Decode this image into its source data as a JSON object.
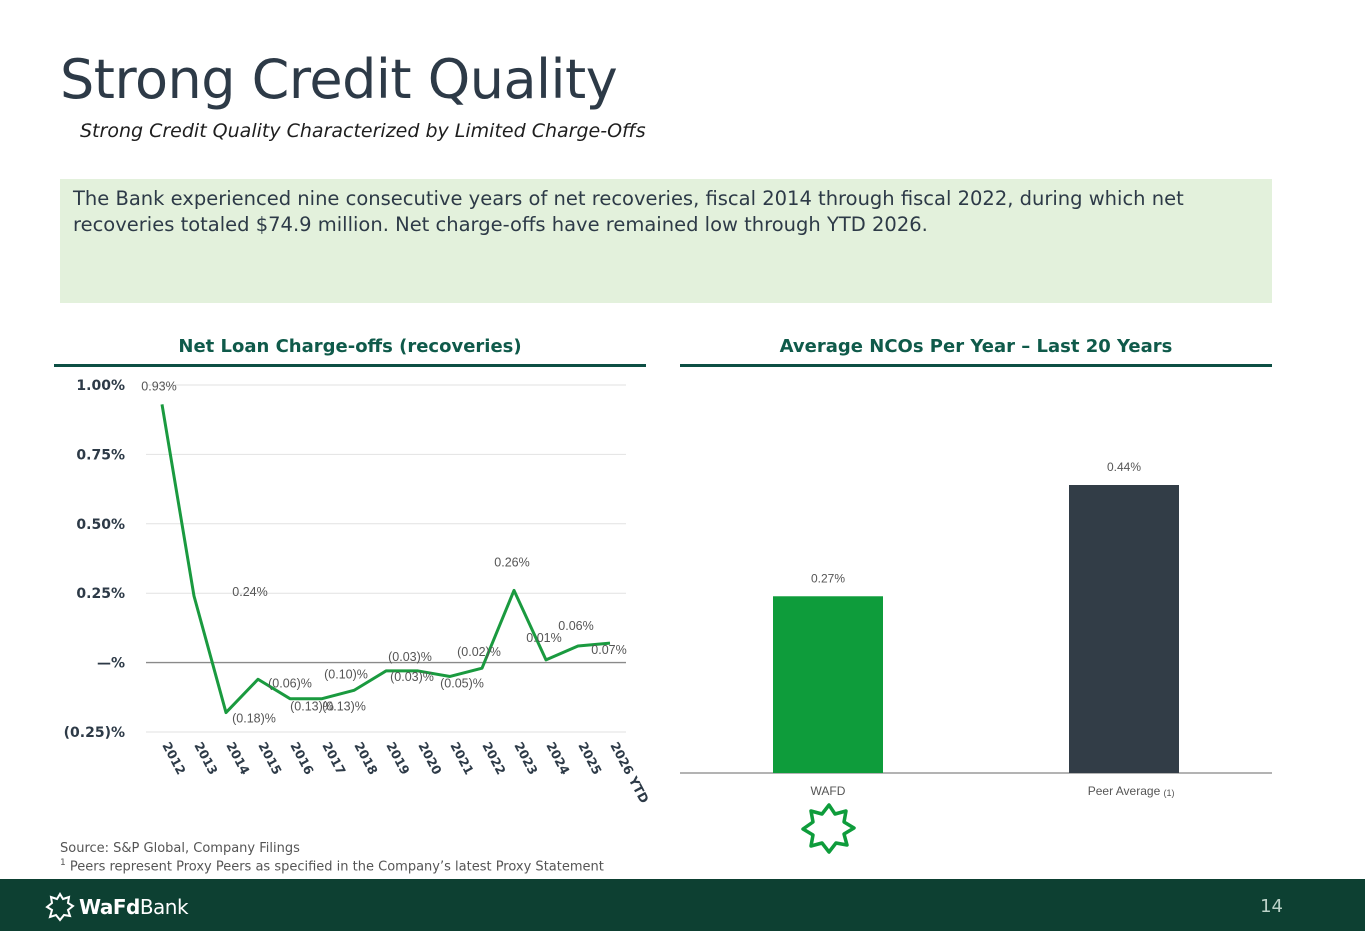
{
  "page": {
    "title": "Strong Credit Quality",
    "subtitle": "Strong Credit Quality Characterized by Limited Charge-Offs",
    "callout": "The Bank experienced nine consecutive years of net recoveries, fiscal 2014 through fiscal 2022, during which net recoveries totaled $74.9 million.  Net charge-offs have remained low through YTD 2026.",
    "source_line": "Source: S&P Global, Company Filings",
    "footnote_mark": "1",
    "footnote_text": " Peers represent Proxy Peers as specified in the Company’s latest Proxy Statement",
    "brand_bold": "WaFd",
    "brand_regular": "Bank",
    "page_number": "14"
  },
  "colors": {
    "dark_green": "#0d4032",
    "accent_green": "#0e9c3b",
    "line_green": "#1a9a3f",
    "peer_bar": "#323d47",
    "callout_bg": "#e3f1dc"
  },
  "chart_data": [
    {
      "type": "line",
      "title": "Net Loan Charge-offs (recoveries)",
      "x": [
        "2012",
        "2013",
        "2014",
        "2015",
        "2016",
        "2017",
        "2018",
        "2019",
        "2020",
        "2021",
        "2022",
        "2023",
        "2024",
        "2025",
        "2026 YTD"
      ],
      "values": [
        0.93,
        0.24,
        -0.18,
        -0.06,
        -0.13,
        -0.13,
        -0.1,
        -0.03,
        -0.03,
        -0.05,
        -0.02,
        0.26,
        0.01,
        0.06,
        0.07
      ],
      "data_labels": [
        "0.93%",
        "0.24%",
        "(0.18)%",
        "(0.06)%",
        "(0.13)%",
        "(0.13)%",
        "(0.10)%",
        "(0.03)%",
        "(0.03)%",
        "(0.05)%",
        "(0.02)%",
        "0.26%",
        "0.01%",
        "0.06%",
        "0.07%"
      ],
      "y_ticks": [
        1.0,
        0.75,
        0.5,
        0.25,
        0,
        -0.25
      ],
      "y_tick_labels": [
        "1.00%",
        "0.75%",
        "0.50%",
        "0.25%",
        "—%",
        "(0.25)%"
      ],
      "ylim": [
        -0.25,
        1.0
      ],
      "grid": true
    },
    {
      "type": "bar",
      "title": "Average NCOs Per Year – Last 20 Years",
      "categories": [
        "WAFD",
        "Peer Average"
      ],
      "category_suffix": [
        "",
        "(1)"
      ],
      "values": [
        0.27,
        0.44
      ],
      "data_labels": [
        "0.27%",
        "0.44%"
      ],
      "grid": false
    }
  ]
}
